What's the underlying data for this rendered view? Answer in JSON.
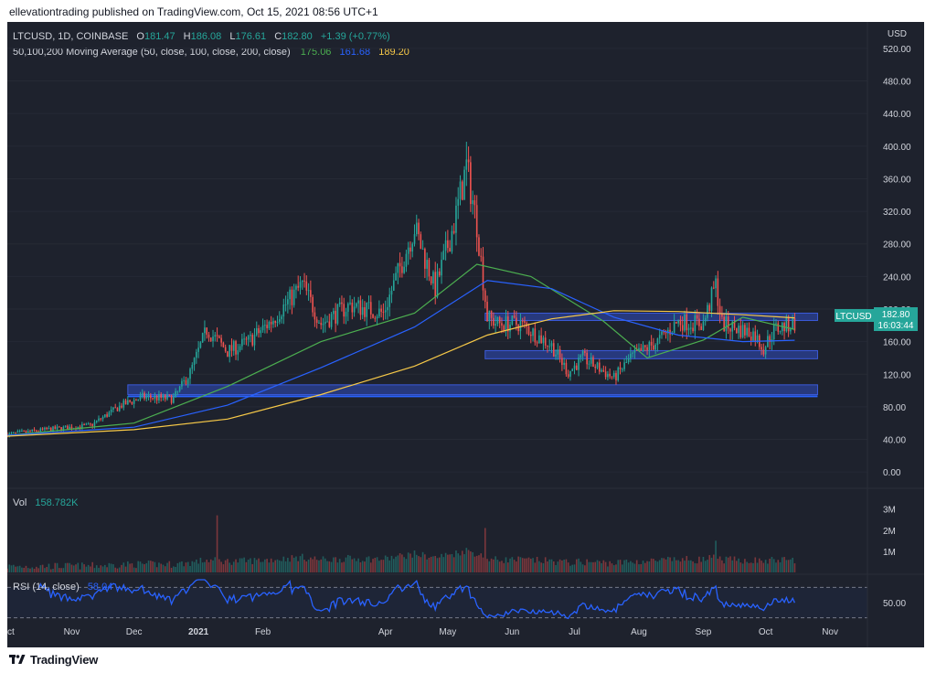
{
  "header": {
    "published_text": "ellevationtrading published on TradingView.com, Oct 15, 2021 08:56 UTC+1"
  },
  "footer": {
    "brand": "TradingView",
    "logo_icon": "tradingview-logo-icon"
  },
  "colors": {
    "background": "#1e222d",
    "up": "#26a69a",
    "down": "#ef5350",
    "ma50": "#4caf50",
    "ma100": "#2962ff",
    "ma200": "#f7c948",
    "rsi": "#2962ff",
    "zone": "#2f4dbf",
    "price_label": "#26a69a",
    "volume_label": "#26a69a"
  },
  "legend": {
    "symbol": "LTCUSD, 1D, COINBASE",
    "o_label": "O",
    "o_value": "181.47",
    "h_label": "H",
    "h_value": "186.08",
    "l_label": "L",
    "l_value": "176.61",
    "c_label": "C",
    "c_value": "182.80",
    "change": "+1.39 (+0.77%)",
    "ma_label": "50,100,200 Moving Average (50, close, 100, close, 200, close)",
    "ma50_value": "175.06",
    "ma100_value": "161.68",
    "ma200_value": "189.20"
  },
  "price_label": {
    "symbol": "LTCUSD",
    "price": "182.80",
    "countdown": "16:03:44"
  },
  "volume_panel": {
    "label": "Vol",
    "value": "158.782K"
  },
  "rsi_panel": {
    "label": "RSI (14, close)",
    "value": "58.04"
  },
  "chart_data": {
    "type": "candlestick",
    "title": "LTCUSD, 1D, COINBASE",
    "currency": "USD",
    "y_ticks": [
      "0.00",
      "40.00",
      "80.00",
      "120.00",
      "160.00",
      "200.00",
      "240.00",
      "280.00",
      "320.00",
      "360.00",
      "400.00",
      "440.00",
      "480.00",
      "520.00"
    ],
    "ylim": [
      -20,
      530
    ],
    "x_ticks": [
      "Oct",
      "Nov",
      "Dec",
      "2021",
      "Feb",
      "Apr",
      "May",
      "Jun",
      "Jul",
      "Aug",
      "Sep",
      "Oct",
      "Nov"
    ],
    "close_path": [
      [
        "2020-10-01",
        46
      ],
      [
        "2020-10-20",
        52
      ],
      [
        "2020-11-10",
        57
      ],
      [
        "2020-11-25",
        82
      ],
      [
        "2020-12-05",
        92
      ],
      [
        "2020-12-20",
        90
      ],
      [
        "2020-12-28",
        122
      ],
      [
        "2021-01-05",
        175
      ],
      [
        "2021-01-15",
        148
      ],
      [
        "2021-01-25",
        160
      ],
      [
        "2021-02-05",
        185
      ],
      [
        "2021-02-20",
        230
      ],
      [
        "2021-03-01",
        182
      ],
      [
        "2021-03-15",
        205
      ],
      [
        "2021-03-31",
        195
      ],
      [
        "2021-04-15",
        300
      ],
      [
        "2021-04-25",
        225
      ],
      [
        "2021-05-04",
        305
      ],
      [
        "2021-05-10",
        375
      ],
      [
        "2021-05-15",
        305
      ],
      [
        "2021-05-20",
        190
      ],
      [
        "2021-05-25",
        182
      ],
      [
        "2021-06-05",
        182
      ],
      [
        "2021-06-20",
        155
      ],
      [
        "2021-06-28",
        122
      ],
      [
        "2021-07-05",
        140
      ],
      [
        "2021-07-20",
        115
      ],
      [
        "2021-07-28",
        140
      ],
      [
        "2021-08-10",
        160
      ],
      [
        "2021-08-20",
        185
      ],
      [
        "2021-09-01",
        182
      ],
      [
        "2021-09-07",
        230
      ],
      [
        "2021-09-10",
        182
      ],
      [
        "2021-09-25",
        170
      ],
      [
        "2021-09-30",
        152
      ],
      [
        "2021-10-05",
        175
      ],
      [
        "2021-10-15",
        182.8
      ]
    ],
    "moving_averages": [
      {
        "name": "MA 50",
        "value": 175.06,
        "points": [
          [
            "2020-10-01",
            45
          ],
          [
            "2020-12-01",
            60
          ],
          [
            "2021-01-15",
            105
          ],
          [
            "2021-03-01",
            160
          ],
          [
            "2021-04-15",
            195
          ],
          [
            "2021-05-15",
            255
          ],
          [
            "2021-06-10",
            240
          ],
          [
            "2021-07-15",
            185
          ],
          [
            "2021-08-05",
            140
          ],
          [
            "2021-09-01",
            162
          ],
          [
            "2021-09-20",
            190
          ],
          [
            "2021-10-15",
            175
          ]
        ]
      },
      {
        "name": "MA 100",
        "value": 161.68,
        "points": [
          [
            "2020-10-01",
            45
          ],
          [
            "2020-12-01",
            55
          ],
          [
            "2021-01-15",
            82
          ],
          [
            "2021-03-01",
            128
          ],
          [
            "2021-04-15",
            178
          ],
          [
            "2021-05-20",
            235
          ],
          [
            "2021-06-20",
            225
          ],
          [
            "2021-07-20",
            190
          ],
          [
            "2021-08-20",
            168
          ],
          [
            "2021-09-20",
            160
          ],
          [
            "2021-10-15",
            161.7
          ]
        ]
      },
      {
        "name": "MA 200",
        "value": 189.2,
        "points": [
          [
            "2020-10-01",
            44
          ],
          [
            "2020-12-01",
            52
          ],
          [
            "2021-01-15",
            65
          ],
          [
            "2021-03-01",
            95
          ],
          [
            "2021-04-15",
            130
          ],
          [
            "2021-05-20",
            168
          ],
          [
            "2021-06-20",
            188
          ],
          [
            "2021-07-20",
            198
          ],
          [
            "2021-08-20",
            197
          ],
          [
            "2021-09-20",
            193
          ],
          [
            "2021-10-15",
            189.2
          ]
        ]
      }
    ],
    "zones": [
      {
        "from": "2021-05-19",
        "to": "2021-10-26",
        "low": 186,
        "high": 195
      },
      {
        "from": "2021-05-19",
        "to": "2021-10-26",
        "low": 139,
        "high": 149
      },
      {
        "from": "2020-11-28",
        "to": "2021-10-26",
        "low": 95,
        "high": 107
      }
    ],
    "support_line": {
      "from": "2020-11-28",
      "to": "2021-10-26",
      "value": 93
    },
    "volume": {
      "last": "158.782K",
      "y_ticks": [
        "1M",
        "2M",
        "3M"
      ],
      "ylim": [
        0,
        3200000
      ]
    },
    "rsi": {
      "last": 58.04,
      "y_ticks": [
        "50.00"
      ],
      "ylim": [
        20,
        80
      ],
      "bands": [
        30,
        70
      ]
    }
  }
}
